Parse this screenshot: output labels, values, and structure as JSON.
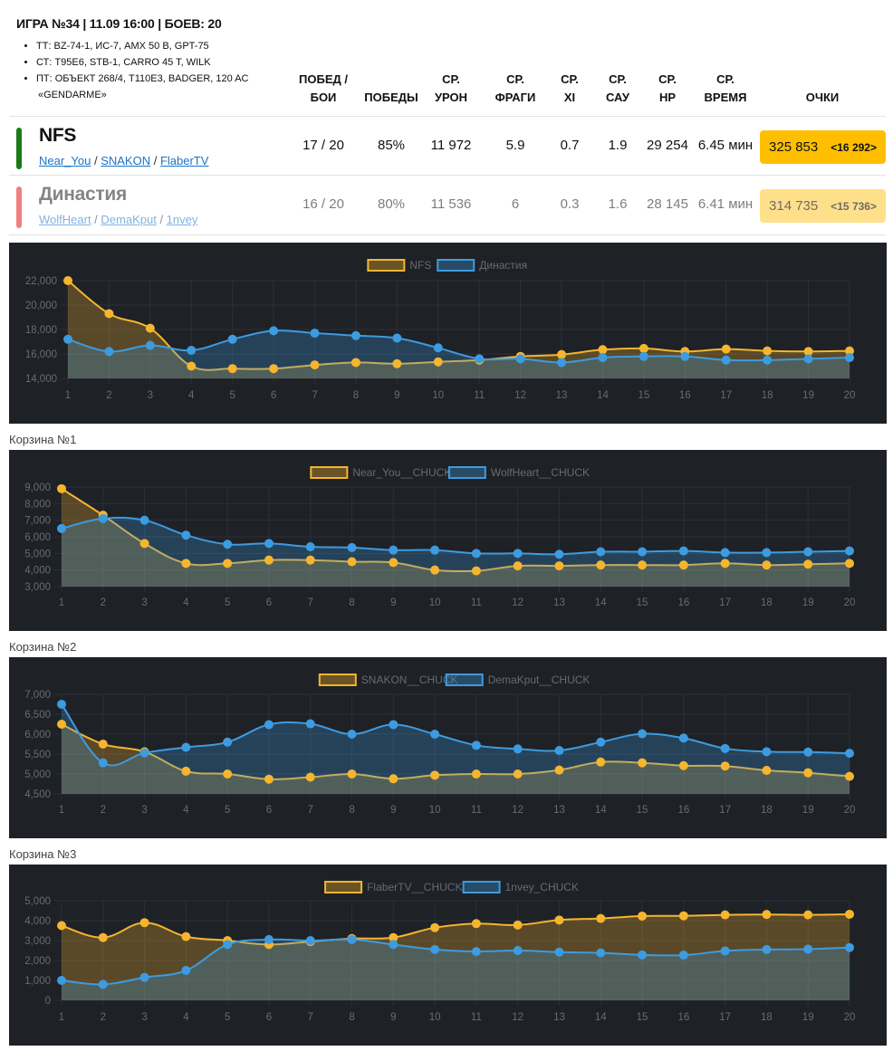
{
  "header": {
    "title": "ИГРА №34 | 11.09 16:00 | БОЕВ: 20",
    "vehicles": [
      "ТТ: BZ-74-1, ИС-7, AMX 50 B, GPT-75",
      "СТ: T95E6, STB-1, CARRO 45 T, WILK",
      "ПТ: ОБЪЕКТ 268/4, T110E3, BADGER, 120 AC",
      "«GENDARME»"
    ]
  },
  "columns": {
    "wins_battles": [
      "ПОБЕД /",
      "БОИ"
    ],
    "wins": "ПОБЕДЫ",
    "damage": [
      "СР.",
      "УРОН"
    ],
    "frags": [
      "СР.",
      "ФРАГИ"
    ],
    "xi": [
      "СР.",
      "XI"
    ],
    "sau": [
      "СР.",
      "САУ"
    ],
    "hp": [
      "СР.",
      "HP"
    ],
    "time": [
      "СР.",
      "ВРЕМЯ"
    ],
    "points": "ОЧКИ"
  },
  "teams": [
    {
      "name": "NFS",
      "color": "#1a7a1a",
      "players": [
        "Near_You",
        "SNAKON",
        "FlaberTV"
      ],
      "wins_battles": "17 / 20",
      "wins": "85%",
      "damage": "11 972",
      "frags": "5.9",
      "xi": "0.7",
      "sau": "1.9",
      "hp": "29 254",
      "time": "6.45 мин",
      "points": "325 853",
      "delta": "<16 292>",
      "box_color": "#ffbf00"
    },
    {
      "name": "Династия",
      "color": "#e83c3c",
      "players": [
        "WolfHeart",
        "DemaKput",
        "1nvey"
      ],
      "wins_battles": "16 / 20",
      "wins": "80%",
      "damage": "11 536",
      "frags": "6",
      "xi": "0.3",
      "sau": "1.6",
      "hp": "28 145",
      "time": "6.41 мин",
      "points": "314 735",
      "delta": "<15 736>",
      "box_color": "#ffbf00"
    }
  ],
  "basket_labels": [
    "Корзина №1",
    "Корзина №2",
    "Корзина №3"
  ],
  "colors": {
    "yellow": "#f5b52e",
    "blue": "#3d9be0",
    "panel": "#1e2126",
    "grid": "#2c3038",
    "text": "#666c75"
  },
  "chart_data": [
    {
      "type": "line",
      "x": [
        1,
        2,
        3,
        4,
        5,
        6,
        7,
        8,
        9,
        10,
        11,
        12,
        13,
        14,
        15,
        16,
        17,
        18,
        19,
        20
      ],
      "ylim": [
        14000,
        22000
      ],
      "yticks": [
        14000,
        16000,
        18000,
        20000,
        22000
      ],
      "ytick_labels": [
        "14,000",
        "16,000",
        "18,000",
        "20,000",
        "22,000"
      ],
      "legend": "top-center",
      "series": [
        {
          "name": "NFS",
          "color": "#f5b52e",
          "values": [
            22000,
            19300,
            18100,
            15000,
            14800,
            14800,
            15100,
            15300,
            15200,
            15350,
            15500,
            15800,
            15950,
            16350,
            16450,
            16200,
            16400,
            16250,
            16200,
            16250
          ]
        },
        {
          "name": "Династия",
          "color": "#3d9be0",
          "values": [
            17200,
            16200,
            16700,
            16300,
            17200,
            17900,
            17700,
            17500,
            17300,
            16500,
            15600,
            15600,
            15300,
            15700,
            15800,
            15800,
            15500,
            15500,
            15600,
            15700
          ]
        }
      ]
    },
    {
      "type": "line",
      "x": [
        1,
        2,
        3,
        4,
        5,
        6,
        7,
        8,
        9,
        10,
        11,
        12,
        13,
        14,
        15,
        16,
        17,
        18,
        19,
        20
      ],
      "ylim": [
        3000,
        9000
      ],
      "yticks": [
        3000,
        4000,
        5000,
        6000,
        7000,
        8000,
        9000
      ],
      "ytick_labels": [
        "3,000",
        "4,000",
        "5,000",
        "6,000",
        "7,000",
        "8,000",
        "9,000"
      ],
      "legend": "top-center",
      "series": [
        {
          "name": "Near_You__CHUCK",
          "color": "#f5b52e",
          "values": [
            8900,
            7300,
            5600,
            4400,
            4400,
            4600,
            4600,
            4500,
            4450,
            4000,
            3950,
            4250,
            4250,
            4300,
            4300,
            4300,
            4400,
            4300,
            4350,
            4400
          ]
        },
        {
          "name": "WolfHeart__CHUCK",
          "color": "#3d9be0",
          "values": [
            6500,
            7100,
            7000,
            6100,
            5550,
            5600,
            5400,
            5350,
            5200,
            5200,
            5000,
            5000,
            4950,
            5100,
            5100,
            5150,
            5050,
            5050,
            5100,
            5150
          ]
        }
      ]
    },
    {
      "type": "line",
      "x": [
        1,
        2,
        3,
        4,
        5,
        6,
        7,
        8,
        9,
        10,
        11,
        12,
        13,
        14,
        15,
        16,
        17,
        18,
        19,
        20
      ],
      "ylim": [
        4500,
        7000
      ],
      "yticks": [
        4500,
        5000,
        5500,
        6000,
        6500,
        7000
      ],
      "ytick_labels": [
        "4,500",
        "5,000",
        "5,500",
        "6,000",
        "6,500",
        "7,000"
      ],
      "legend": "top-center",
      "series": [
        {
          "name": "SNAKON__CHUCK",
          "color": "#f5b52e",
          "values": [
            6250,
            5750,
            5560,
            5070,
            5000,
            4870,
            4920,
            5000,
            4880,
            4970,
            5000,
            5000,
            5100,
            5300,
            5280,
            5210,
            5200,
            5090,
            5030,
            4940
          ]
        },
        {
          "name": "DemaKput__CHUCK",
          "color": "#3d9be0",
          "values": [
            6750,
            5280,
            5530,
            5670,
            5800,
            6240,
            6260,
            6000,
            6240,
            6000,
            5720,
            5630,
            5590,
            5800,
            6010,
            5900,
            5640,
            5560,
            5550,
            5520
          ]
        }
      ]
    },
    {
      "type": "line",
      "x": [
        1,
        2,
        3,
        4,
        5,
        6,
        7,
        8,
        9,
        10,
        11,
        12,
        13,
        14,
        15,
        16,
        17,
        18,
        19,
        20
      ],
      "ylim": [
        0,
        5000
      ],
      "yticks": [
        0,
        1000,
        2000,
        3000,
        4000,
        5000
      ],
      "ytick_labels": [
        "0",
        "1,000",
        "2,000",
        "3,000",
        "4,000",
        "5,000"
      ],
      "legend": "top-center",
      "series": [
        {
          "name": "FlaberTV__CHUCK",
          "color": "#f5b52e",
          "values": [
            3750,
            3150,
            3900,
            3200,
            3000,
            2800,
            2950,
            3100,
            3150,
            3650,
            3850,
            3780,
            4030,
            4110,
            4230,
            4240,
            4290,
            4310,
            4290,
            4320
          ]
        },
        {
          "name": "1nvey_CHUCK",
          "color": "#3d9be0",
          "values": [
            1000,
            800,
            1150,
            1500,
            2800,
            3050,
            3000,
            3050,
            2800,
            2550,
            2450,
            2500,
            2420,
            2380,
            2280,
            2270,
            2480,
            2550,
            2570,
            2650
          ]
        }
      ]
    }
  ]
}
